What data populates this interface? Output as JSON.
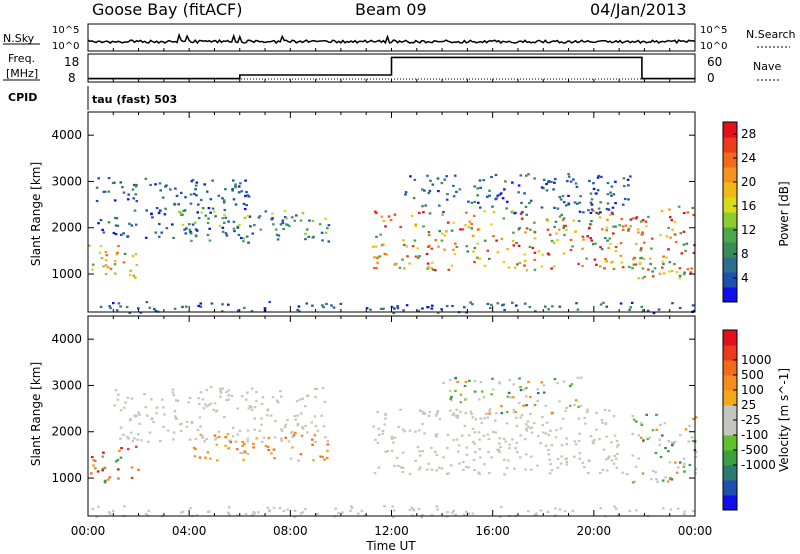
{
  "header": {
    "station": "Goose Bay (fitACF)",
    "beam": "Beam 09",
    "date": "04/Jan/2013"
  },
  "status_panels": {
    "nsky_label": "N.Sky",
    "nsky_ticks": [
      "10^5",
      "10^0"
    ],
    "nsearch_label": "N.Search",
    "nsearch_ticks": [
      "10^5",
      "10^0"
    ],
    "freq_label_line1": "Freq.",
    "freq_label_line2": "[MHz]",
    "freq_ticks": [
      "18",
      "8"
    ],
    "nave_label": "Nave",
    "nave_ticks": [
      "60",
      "0"
    ],
    "cpid_label": "CPID",
    "cpid_value": "tau (fast) 503"
  },
  "chart_data": [
    {
      "type": "heatmap",
      "panel": "power",
      "ylabel": "Slant Range [km]",
      "ylim": [
        180,
        4500
      ],
      "yticks": [
        "1000",
        "2000",
        "3000",
        "4000"
      ],
      "xlim": [
        "00:00",
        "24:00"
      ],
      "colorbar": {
        "label": "Power [dB]",
        "ticks": [
          "4",
          "8",
          "12",
          "16",
          "20",
          "24",
          "28"
        ],
        "range": [
          0,
          30
        ],
        "colors": [
          "#1010e6",
          "#1f4fb0",
          "#2d6f8c",
          "#3a8a5a",
          "#4aa84a",
          "#8ccc2c",
          "#d6dc14",
          "#f4b814",
          "#f7931c",
          "#f46a1c",
          "#ec3a1a",
          "#e2101a"
        ]
      },
      "regions": [
        {
          "t_start": 0.0,
          "t_end": 2.0,
          "r_min": 900,
          "r_max": 1700,
          "level": "medium-high"
        },
        {
          "t_start": 0.3,
          "t_end": 6.5,
          "r_min": 1800,
          "r_max": 3100,
          "level": "low"
        },
        {
          "t_start": 3.5,
          "t_end": 9.5,
          "r_min": 1700,
          "r_max": 2400,
          "level": "medium"
        },
        {
          "t_start": 11.2,
          "t_end": 22.0,
          "r_min": 1100,
          "r_max": 2400,
          "level": "high"
        },
        {
          "t_start": 12.5,
          "t_end": 21.5,
          "r_min": 2300,
          "r_max": 3200,
          "level": "low"
        },
        {
          "t_start": 21.5,
          "t_end": 24.0,
          "r_min": 900,
          "r_max": 2500,
          "level": "high"
        },
        {
          "t_start": 0.0,
          "t_end": 24.0,
          "r_min": 180,
          "r_max": 420,
          "level": "low"
        }
      ]
    },
    {
      "type": "heatmap",
      "panel": "velocity",
      "ylabel": "Slant Range [km]",
      "xlabel": "Time UT",
      "ylim": [
        180,
        4500
      ],
      "yticks": [
        "1000",
        "2000",
        "3000",
        "4000"
      ],
      "xticks": [
        "00:00",
        "04:00",
        "08:00",
        "12:00",
        "16:00",
        "20:00",
        "00:00"
      ],
      "colorbar": {
        "label": "Velocity [m s^-1]",
        "ticks": [
          "1000",
          "500",
          "100",
          "25",
          "-25",
          "-100",
          "-500",
          "-1000"
        ],
        "colors": [
          "#1010e6",
          "#1f4fb0",
          "#2d7a70",
          "#3aa040",
          "#62c02c",
          "#c6c6c0",
          "#c6c6c0",
          "#f4a81c",
          "#f68c1c",
          "#f36a1c",
          "#ec3a1a",
          "#e2101a"
        ]
      },
      "regions": [
        {
          "t_start": 0.0,
          "t_end": 2.0,
          "r_min": 900,
          "r_max": 1700,
          "level": "toward-red"
        },
        {
          "t_start": 1.0,
          "t_end": 9.5,
          "r_min": 1800,
          "r_max": 3000,
          "level": "ground-grey"
        },
        {
          "t_start": 4.0,
          "t_end": 9.5,
          "r_min": 1400,
          "r_max": 2000,
          "level": "away-orange"
        },
        {
          "t_start": 11.2,
          "t_end": 21.5,
          "r_min": 1100,
          "r_max": 2500,
          "level": "ground-grey"
        },
        {
          "t_start": 14.0,
          "t_end": 19.5,
          "r_min": 2400,
          "r_max": 3200,
          "level": "mixed-green"
        },
        {
          "t_start": 21.5,
          "t_end": 24.0,
          "r_min": 900,
          "r_max": 2400,
          "level": "mixed-green"
        },
        {
          "t_start": 0.0,
          "t_end": 24.0,
          "r_min": 180,
          "r_max": 420,
          "level": "ground-grey"
        }
      ]
    }
  ],
  "status_series": {
    "freq_mhz": [
      {
        "t_start": 0.0,
        "t_end": 6.0,
        "value": 9.2
      },
      {
        "t_start": 6.0,
        "t_end": 12.0,
        "value": 10.5
      },
      {
        "t_start": 12.0,
        "t_end": 21.9,
        "value": 16.8
      },
      {
        "t_start": 21.9,
        "t_end": 24.0,
        "value": 9.2
      }
    ],
    "nsky_level": 0.35
  }
}
